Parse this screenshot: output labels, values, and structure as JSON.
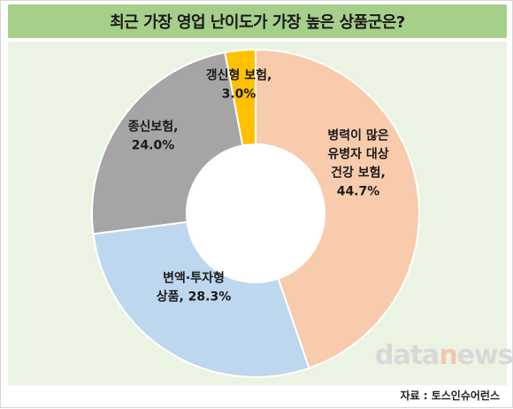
{
  "title": "최근 가장 영업 난이도가 가장 높은 상품군은?",
  "source": "자료 : 토스인슈어런스",
  "watermark": "datanews",
  "chart_data": {
    "type": "pie",
    "donut": true,
    "categories": [
      "병력이 많은 유병자 대상 건강 보험",
      "변액·투자형 상품",
      "종신보험",
      "갱신형 보험"
    ],
    "values": [
      44.7,
      28.3,
      24.0,
      3.0
    ],
    "unit": "%",
    "labels": [
      [
        "병력이 많은",
        "유병자 대상",
        "건강 보험,",
        "44.7%"
      ],
      [
        "변액·투자형",
        "상품, 28.3%"
      ],
      [
        "종신보험,",
        "24.0%"
      ],
      [
        "갱신형 보험,",
        "3.0%"
      ]
    ],
    "colors": [
      "#f8cbad",
      "#bdd7ee",
      "#a5a5a5",
      "#ffc000"
    ],
    "start_angle": "12 o'clock",
    "direction": "clockwise",
    "legend": "none"
  }
}
